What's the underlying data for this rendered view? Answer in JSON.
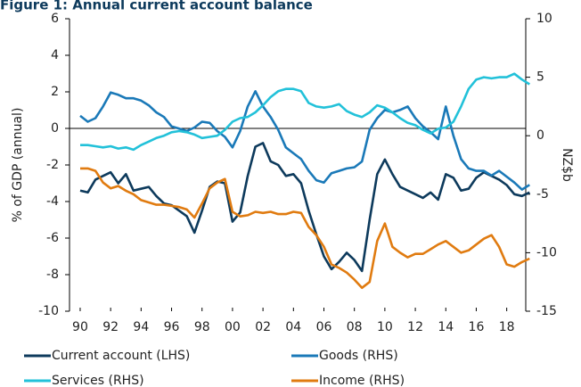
{
  "chart_data": {
    "type": "line",
    "title": "Figure 1: Annual current account balance",
    "y_label": "% of GDP (annual)",
    "y2_label": "NZ$b",
    "x": [
      1990,
      1990.5,
      1991,
      1991.5,
      1992,
      1992.5,
      1993,
      1993.5,
      1994,
      1994.5,
      1995,
      1995.5,
      1996,
      1996.5,
      1997,
      1997.5,
      1998,
      1998.5,
      1999,
      1999.5,
      2000,
      2000.5,
      2001,
      2001.5,
      2002,
      2002.5,
      2003,
      2003.5,
      2004,
      2004.5,
      2005,
      2005.5,
      2006,
      2006.5,
      2007,
      2007.5,
      2008,
      2008.5,
      2009,
      2009.5,
      2010,
      2010.5,
      2011,
      2011.5,
      2012,
      2012.5,
      2013,
      2013.5,
      2014,
      2014.5,
      2015,
      2015.5,
      2016,
      2016.5,
      2017,
      2017.5,
      2018,
      2018.5,
      2019,
      2019.5
    ],
    "xlim": [
      1989.3,
      2019.6
    ],
    "xticks": [
      {
        "value": 1990,
        "label": "90"
      },
      {
        "value": 1992,
        "label": "92"
      },
      {
        "value": 1994,
        "label": "94"
      },
      {
        "value": 1996,
        "label": "96"
      },
      {
        "value": 1998,
        "label": "98"
      },
      {
        "value": 2000,
        "label": "00"
      },
      {
        "value": 2002,
        "label": "02"
      },
      {
        "value": 2004,
        "label": "04"
      },
      {
        "value": 2006,
        "label": "06"
      },
      {
        "value": 2008,
        "label": "08"
      },
      {
        "value": 2010,
        "label": "10"
      },
      {
        "value": 2012,
        "label": "12"
      },
      {
        "value": 2014,
        "label": "14"
      },
      {
        "value": 2016,
        "label": "16"
      },
      {
        "value": 2018,
        "label": "18"
      }
    ],
    "ylim": [
      -10,
      6
    ],
    "yticks": [
      6,
      4,
      2,
      0,
      -2,
      -4,
      -6,
      -8,
      -10
    ],
    "y2lim": [
      -15,
      10
    ],
    "y2ticks": [
      10,
      5,
      0,
      -5,
      -10,
      -15
    ],
    "series": [
      {
        "name": "Current account (LHS)",
        "color": "#0d3a5c",
        "axis": "y",
        "values": [
          -3.4,
          -3.5,
          -2.8,
          -2.6,
          -2.4,
          -3.0,
          -2.5,
          -3.4,
          -3.3,
          -3.2,
          -3.7,
          -4.1,
          -4.2,
          -4.5,
          -4.8,
          -5.7,
          -4.5,
          -3.2,
          -2.9,
          -3.0,
          -5.1,
          -4.6,
          -2.6,
          -1.0,
          -0.8,
          -1.8,
          -2.0,
          -2.6,
          -2.5,
          -3.0,
          -4.5,
          -5.8,
          -7.0,
          -7.7,
          -7.3,
          -6.8,
          -7.2,
          -7.8,
          -5.0,
          -2.5,
          -1.7,
          -2.5,
          -3.2,
          -3.4,
          -3.6,
          -3.8,
          -3.5,
          -3.9,
          -2.5,
          -2.7,
          -3.4,
          -3.3,
          -2.7,
          -2.4,
          -2.6,
          -2.8,
          -3.1,
          -3.6,
          -3.7,
          -3.5
        ]
      },
      {
        "name": "Goods (RHS)",
        "color": "#1a79b8",
        "axis": "y2",
        "values": [
          1.7,
          1.2,
          1.5,
          2.5,
          3.7,
          3.5,
          3.2,
          3.2,
          3.0,
          2.6,
          2.0,
          1.6,
          0.8,
          0.6,
          0.4,
          0.7,
          1.2,
          1.1,
          0.4,
          -0.1,
          -1.0,
          0.4,
          2.5,
          3.8,
          2.5,
          1.6,
          0.5,
          -1.0,
          -1.5,
          -2.0,
          -3.0,
          -3.8,
          -4.0,
          -3.2,
          -3.0,
          -2.8,
          -2.7,
          -2.2,
          0.5,
          1.5,
          2.2,
          2.0,
          2.2,
          2.5,
          1.5,
          0.8,
          0.3,
          -0.3,
          2.5,
          0.0,
          -2.0,
          -2.8,
          -3.0,
          -3.0,
          -3.4,
          -3.0,
          -3.5,
          -4.0,
          -4.6,
          -4.2
        ]
      },
      {
        "name": "Services (RHS)",
        "color": "#22c1d9",
        "axis": "y2",
        "values": [
          -0.8,
          -0.8,
          -0.9,
          -1.0,
          -0.9,
          -1.1,
          -1.0,
          -1.2,
          -0.8,
          -0.5,
          -0.2,
          0.0,
          0.3,
          0.4,
          0.3,
          0.1,
          -0.2,
          -0.1,
          0.0,
          0.5,
          1.2,
          1.5,
          1.6,
          2.0,
          2.6,
          3.3,
          3.8,
          4.0,
          4.0,
          3.8,
          2.8,
          2.5,
          2.4,
          2.5,
          2.7,
          2.1,
          1.8,
          1.6,
          2.0,
          2.6,
          2.4,
          2.0,
          1.5,
          1.1,
          0.9,
          0.5,
          0.2,
          0.6,
          0.7,
          1.2,
          2.5,
          4.0,
          4.8,
          5.0,
          4.9,
          5.0,
          5.0,
          5.3,
          4.8,
          4.4
        ]
      },
      {
        "name": "Income (RHS)",
        "color": "#e07b10",
        "axis": "y2",
        "values": [
          -2.8,
          -2.8,
          -3.0,
          -4.0,
          -4.5,
          -4.3,
          -4.7,
          -5.0,
          -5.5,
          -5.7,
          -5.9,
          -5.9,
          -6.0,
          -6.1,
          -6.3,
          -7.0,
          -5.8,
          -4.5,
          -4.0,
          -3.7,
          -6.5,
          -6.9,
          -6.8,
          -6.5,
          -6.6,
          -6.5,
          -6.7,
          -6.7,
          -6.5,
          -6.6,
          -7.8,
          -8.5,
          -9.5,
          -11.0,
          -11.3,
          -11.7,
          -12.3,
          -13.0,
          -12.5,
          -9.0,
          -7.5,
          -9.5,
          -10.0,
          -10.4,
          -10.1,
          -10.1,
          -9.7,
          -9.3,
          -9.0,
          -9.5,
          -10.0,
          -9.8,
          -9.3,
          -8.8,
          -8.5,
          -9.5,
          -11.0,
          -11.2,
          -10.8,
          -10.5
        ]
      }
    ]
  }
}
